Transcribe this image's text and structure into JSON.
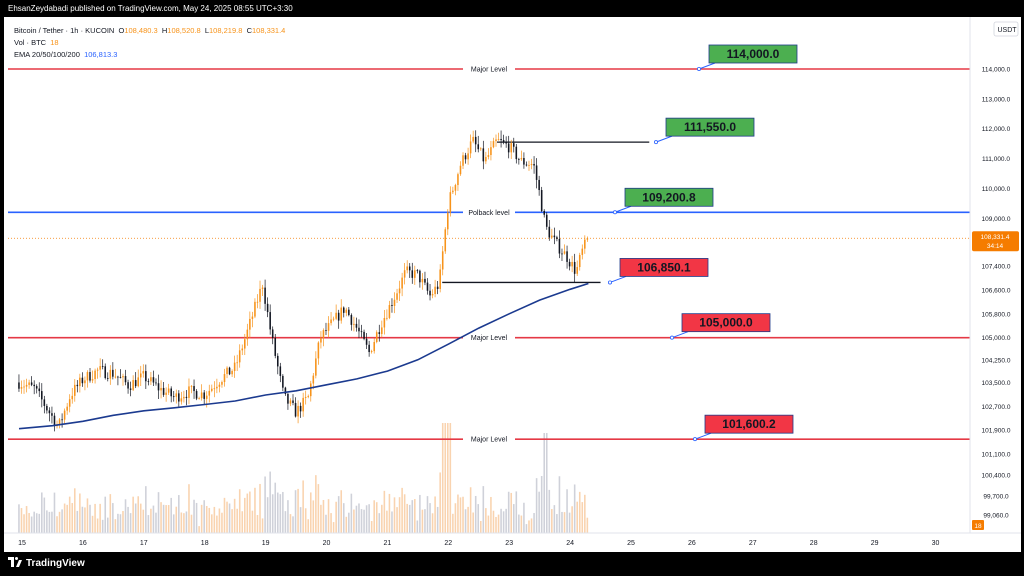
{
  "header": {
    "publisher_line": "EhsanZeydabadi published on TradingView.com, May 24, 2025 08:55 UTC+3:30"
  },
  "legend": {
    "symbol": "Bitcoin / Tether · 1h · KUCOIN",
    "open_label": "O",
    "open": "108,480.3",
    "high_label": "H",
    "high": "108,520.8",
    "low_label": "L",
    "low": "108,219.8",
    "close_label": "C",
    "close": "108,331.4",
    "volume_label": "Vol · BTC",
    "volume": "18",
    "ema_label": "EMA 20/50/100/200",
    "ema_value": "106,813.3"
  },
  "currency": "USDT",
  "footer": {
    "brand": "TradingView"
  },
  "colors": {
    "major_level": "#e53945",
    "pullback_level": "#2962ff",
    "ema": "#1b3a8f",
    "candle_up": "#f7931a",
    "candle_down": "#131722",
    "green_label": "#4caf50",
    "red_label": "#f23645",
    "last_price": "#f57c00"
  },
  "chart_data": {
    "type": "candlestick",
    "title": "Bitcoin / Tether · 1h · KUCOIN",
    "x_tick_labels": [
      "15",
      "16",
      "17",
      "18",
      "19",
      "20",
      "21",
      "22",
      "23",
      "24",
      "25",
      "26",
      "27",
      "28",
      "29",
      "30"
    ],
    "y_tick_labels": [
      "114,000.0",
      "113,000.0",
      "112,000.0",
      "111,000.0",
      "110,000.0",
      "109,000.0",
      "107,400.0",
      "106,600.0",
      "105,800.0",
      "105,000.0",
      "104,250.0",
      "103,500.0",
      "102,700.0",
      "101,900.0",
      "101,100.0",
      "100,400.0",
      "99,700.0",
      "99,060.0"
    ],
    "ylim": [
      98500,
      115000
    ],
    "last_price": "108,331.4",
    "countdown": "34:14",
    "volume_last": "18",
    "price_path": [
      [
        14.95,
        103500
      ],
      [
        15.2,
        103300
      ],
      [
        15.45,
        102500
      ],
      [
        15.6,
        102000
      ],
      [
        15.8,
        103100
      ],
      [
        16.0,
        103600
      ],
      [
        16.25,
        103900
      ],
      [
        16.5,
        103800
      ],
      [
        16.75,
        103400
      ],
      [
        17.0,
        103700
      ],
      [
        17.25,
        103300
      ],
      [
        17.5,
        103000
      ],
      [
        17.75,
        103200
      ],
      [
        18.0,
        103100
      ],
      [
        18.25,
        103600
      ],
      [
        18.5,
        104000
      ],
      [
        18.7,
        105200
      ],
      [
        18.95,
        106800
      ],
      [
        19.1,
        105000
      ],
      [
        19.3,
        103000
      ],
      [
        19.5,
        102500
      ],
      [
        19.7,
        103000
      ],
      [
        19.9,
        105000
      ],
      [
        20.1,
        105500
      ],
      [
        20.3,
        106000
      ],
      [
        20.5,
        105300
      ],
      [
        20.7,
        104500
      ],
      [
        20.9,
        105500
      ],
      [
        21.1,
        106300
      ],
      [
        21.3,
        107200
      ],
      [
        21.5,
        107100
      ],
      [
        21.7,
        106400
      ],
      [
        21.85,
        106800
      ],
      [
        22.0,
        109500
      ],
      [
        22.2,
        110800
      ],
      [
        22.4,
        111600
      ],
      [
        22.6,
        110900
      ],
      [
        22.8,
        111600
      ],
      [
        23.0,
        111400
      ],
      [
        23.2,
        110900
      ],
      [
        23.4,
        110800
      ],
      [
        23.5,
        109800
      ],
      [
        23.6,
        108700
      ],
      [
        23.75,
        108200
      ],
      [
        23.95,
        107700
      ],
      [
        24.1,
        107200
      ],
      [
        24.2,
        107900
      ],
      [
        24.3,
        108331.4
      ]
    ],
    "ema_200": [
      [
        14.95,
        101950
      ],
      [
        15.5,
        102050
      ],
      [
        16,
        102200
      ],
      [
        16.5,
        102400
      ],
      [
        17,
        102550
      ],
      [
        17.5,
        102650
      ],
      [
        18,
        102760
      ],
      [
        18.5,
        102880
      ],
      [
        19,
        103080
      ],
      [
        19.5,
        103220
      ],
      [
        20,
        103420
      ],
      [
        20.5,
        103620
      ],
      [
        21,
        103880
      ],
      [
        21.5,
        104260
      ],
      [
        22,
        104780
      ],
      [
        22.5,
        105320
      ],
      [
        23,
        105800
      ],
      [
        23.5,
        106260
      ],
      [
        24,
        106620
      ],
      [
        24.3,
        106813.3
      ]
    ],
    "horizontal_levels": [
      {
        "price": 114000,
        "label": "Major Level",
        "kind": "major"
      },
      {
        "price": 109200.8,
        "label": "Polback level",
        "kind": "pullback"
      },
      {
        "price": 105000,
        "label": "Major Level",
        "kind": "major"
      },
      {
        "price": 101600.2,
        "label": "Major Level",
        "kind": "major"
      }
    ],
    "segments": [
      {
        "price": 111550,
        "from": 22.8,
        "to": 25.3
      },
      {
        "price": 106850,
        "from": 21.9,
        "to": 24.5
      }
    ],
    "callouts": [
      {
        "text": "114,000.0",
        "price": 114000,
        "color": "green"
      },
      {
        "text": "111,550.0",
        "price": 111550,
        "color": "green"
      },
      {
        "text": "109,200.8",
        "price": 109200.8,
        "color": "green"
      },
      {
        "text": "106,850.1",
        "price": 106850.1,
        "color": "red"
      },
      {
        "text": "105,000.0",
        "price": 105000,
        "color": "red"
      },
      {
        "text": "101,600.2",
        "price": 101600.2,
        "color": "red"
      }
    ]
  }
}
